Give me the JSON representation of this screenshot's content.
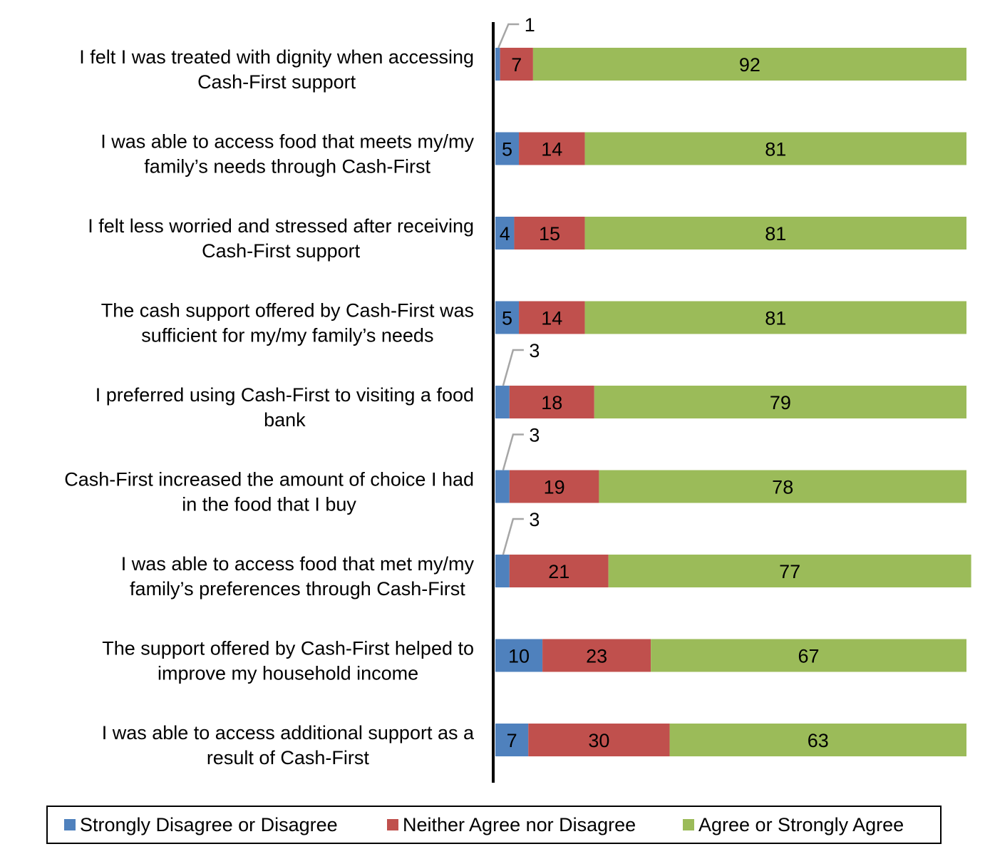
{
  "chart_data": {
    "type": "bar",
    "orientation": "horizontal",
    "stacked": true,
    "xlim": [
      0,
      100
    ],
    "grid": false,
    "legend_position": "bottom",
    "categories": [
      [
        "I felt I was treated with dignity when accessing",
        "Cash-First support"
      ],
      [
        "I was able to access food that meets my/my",
        "family’s needs through Cash-First"
      ],
      [
        "I felt less worried and stressed after receiving",
        "Cash-First support"
      ],
      [
        "The cash support offered by Cash-First was",
        "sufficient for my/my family’s needs"
      ],
      [
        "I preferred using Cash-First to visiting a food",
        "bank"
      ],
      [
        "Cash-First increased the amount of choice I had",
        "in the food that I buy"
      ],
      [
        "I was able to access food that met my/my",
        "family’s preferences through Cash-First"
      ],
      [
        "The support offered by Cash-First helped to",
        "improve my household income"
      ],
      [
        "I was able to access additional support as a",
        "result of Cash-First"
      ]
    ],
    "series": [
      {
        "name": "Strongly Disagree or Disagree",
        "color": "#4F81BD",
        "values": [
          1,
          5,
          4,
          5,
          3,
          3,
          3,
          10,
          7
        ]
      },
      {
        "name": "Neither Agree nor Disagree",
        "color": "#C0504D",
        "values": [
          7,
          14,
          15,
          14,
          18,
          19,
          21,
          23,
          30
        ]
      },
      {
        "name": "Agree or Strongly Agree",
        "color": "#9BBB59",
        "values": [
          92,
          81,
          81,
          81,
          79,
          78,
          77,
          67,
          63
        ]
      }
    ]
  }
}
